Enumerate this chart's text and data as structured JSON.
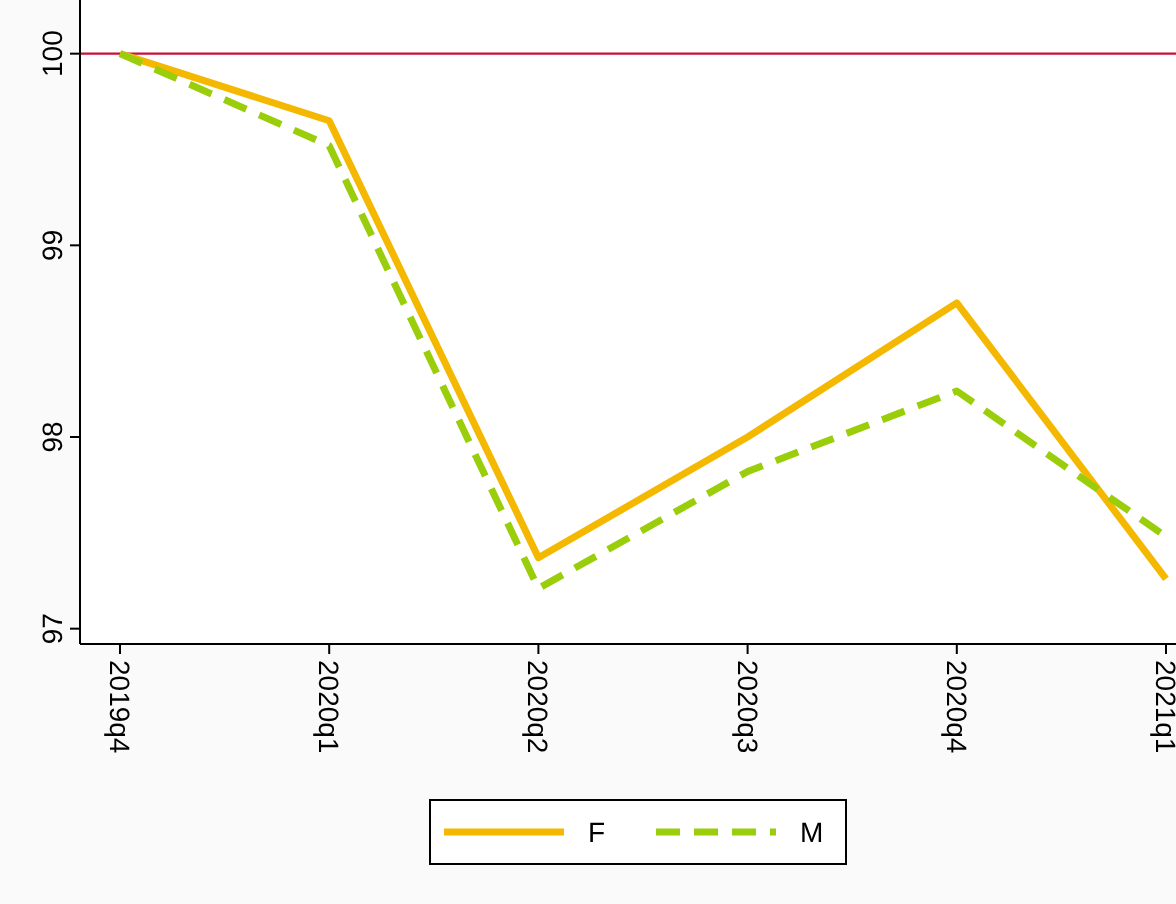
{
  "chart_data": {
    "type": "line",
    "categories": [
      "2019q4",
      "2020q1",
      "2020q2",
      "2020q3",
      "2020q4",
      "2021q1"
    ],
    "series": [
      {
        "name": "F",
        "color": "#f5b800",
        "line_style": "solid",
        "values": [
          100,
          99.65,
          97.37,
          98.0,
          98.7,
          97.26
        ]
      },
      {
        "name": "M",
        "color": "#9acd0a",
        "line_style": "dashed",
        "values": [
          100,
          99.52,
          97.21,
          97.82,
          98.24,
          97.48
        ]
      }
    ],
    "ylim": [
      96.92,
      100.28
    ],
    "yticks": [
      97,
      98,
      99,
      100
    ],
    "grid": false,
    "legend": "bottom",
    "ref_lines": [
      {
        "axis": "y",
        "value": 100,
        "color": "#c8103a"
      }
    ]
  }
}
